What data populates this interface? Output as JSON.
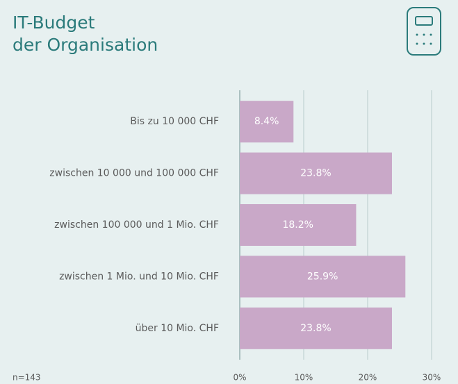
{
  "chart_data": {
    "type": "barh",
    "title": [
      "IT-Budget",
      "der Organisation"
    ],
    "note": "n=143",
    "categories": [
      "Bis zu 10 000 CHF",
      "zwischen 10 000 und 100 000 CHF",
      "zwischen 100 000 und 1 Mio. CHF",
      "zwischen 1 Mio. und 10 Mio. CHF",
      "über 10 Mio. CHF"
    ],
    "values": [
      8.4,
      23.8,
      18.2,
      25.9,
      23.8
    ],
    "value_labels": [
      "8.4%",
      "23.8%",
      "18.2%",
      "25.9%",
      "23.8%"
    ],
    "color": "#c9a8c8",
    "xlim": [
      0,
      30
    ],
    "xticks": [
      {
        "value": 0,
        "label": "0%"
      },
      {
        "value": 10,
        "label": "10%"
      },
      {
        "value": 20,
        "label": "20%"
      },
      {
        "value": 30,
        "label": "30%"
      }
    ],
    "grid": true
  }
}
